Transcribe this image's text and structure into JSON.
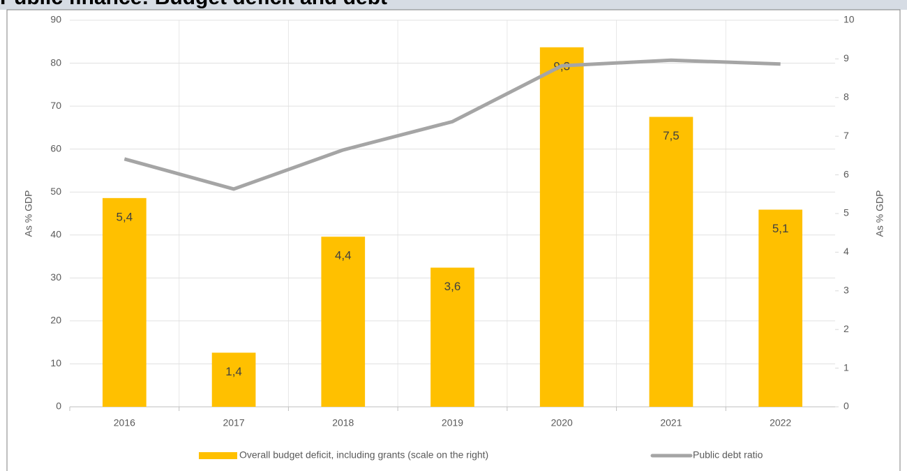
{
  "chart_data": {
    "type": "bar-line",
    "title": "Public finance: Budget deficit and debt",
    "categories": [
      "2016",
      "2017",
      "2018",
      "2019",
      "2020",
      "2021",
      "2022"
    ],
    "series": [
      {
        "name": "Overall budget deficit, including grants (scale on the right)",
        "color": "#ffc000",
        "type": "bar",
        "axis": "y2",
        "values": [
          5.4,
          1.4,
          4.4,
          3.6,
          9.3,
          7.5,
          5.1
        ],
        "value_labels": [
          "5,4",
          "1,4",
          "4,4",
          "3,6",
          "9,3",
          "7,5",
          "5,1"
        ]
      },
      {
        "name": "Public debt ratio",
        "color": "#a5a5a5",
        "type": "line",
        "values": [
          57.7,
          50.7,
          59.8,
          66.4,
          79.4,
          80.7,
          79.8
        ]
      }
    ],
    "ylabel": "As % GDP",
    "y2label": "As % GDP",
    "ylim": [
      0,
      90
    ],
    "yticks": [
      0,
      10,
      20,
      30,
      40,
      50,
      60,
      70,
      80,
      90
    ],
    "y2lim": [
      0,
      10
    ],
    "y2ticks": [
      0,
      1,
      2,
      3,
      4,
      5,
      6,
      7,
      8,
      9,
      10
    ],
    "grid": true,
    "legend": "bottom"
  }
}
